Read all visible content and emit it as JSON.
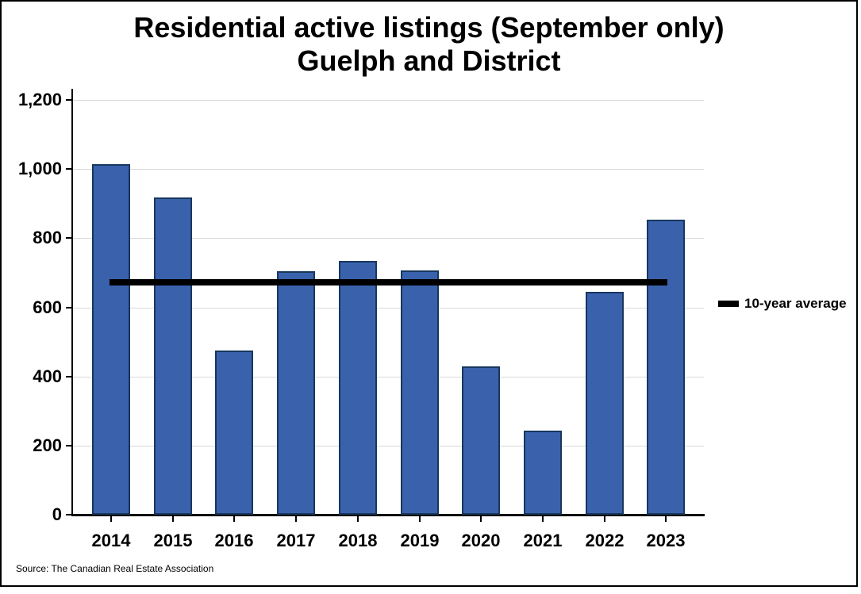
{
  "title": {
    "line1": "Residential active listings (September only)",
    "line2": "Guelph and District"
  },
  "legend": {
    "label": "10-year average"
  },
  "source": "Source: The Canadian Real Estate Association",
  "chart_data": {
    "type": "bar",
    "title": "Residential active listings (September only) Guelph and District",
    "categories": [
      "2014",
      "2015",
      "2016",
      "2017",
      "2018",
      "2019",
      "2020",
      "2021",
      "2022",
      "2023"
    ],
    "values": [
      1014,
      918,
      476,
      705,
      734,
      707,
      430,
      244,
      645,
      854
    ],
    "average_line": {
      "label": "10-year average",
      "value": 673
    },
    "ylim": [
      0,
      1200
    ],
    "yticks": [
      0,
      200,
      400,
      600,
      800,
      1000,
      1200
    ],
    "ytick_labels": [
      "0",
      "200",
      "400",
      "600",
      "800",
      "1,000",
      "1,200"
    ],
    "xlabel": "",
    "ylabel": "",
    "grid": true,
    "legend_position": "right",
    "bar_color": "#3a62ac",
    "bar_border_color": "#17375e",
    "average_line_color": "#000000",
    "gridline_color": "#d9d9d9"
  }
}
